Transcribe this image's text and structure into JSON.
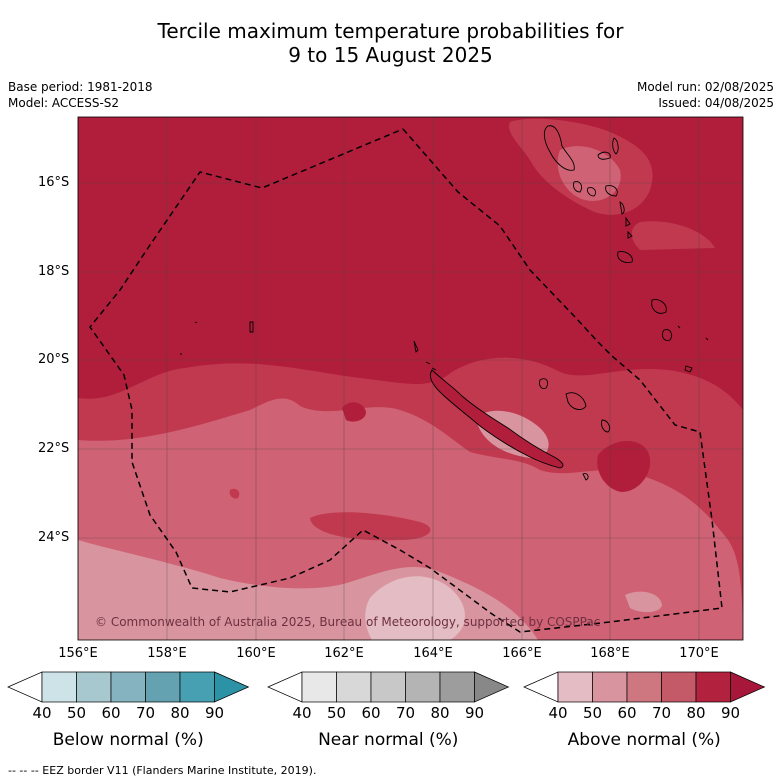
{
  "title": {
    "line1": "Tercile maximum temperature probabilities for",
    "line2": "9 to 15 August 2025"
  },
  "info": {
    "base_period": "Base period: 1981-2018",
    "model": "Model: ACCESS-S2",
    "model_run": "Model run: 02/08/2025",
    "issued": "Issued: 04/08/2025"
  },
  "map": {
    "lat_labels": [
      "16°S",
      "18°S",
      "20°S",
      "22°S",
      "24°S"
    ],
    "lon_labels": [
      "156°E",
      "158°E",
      "160°E",
      "162°E",
      "164°E",
      "166°E",
      "168°E",
      "170°E"
    ],
    "copyright": "© Commonwealth of Australia 2025, Bureau of Meteorology, supported by COSPPac",
    "dominant_category": "Above normal",
    "dominant_probability_range": "80-90%"
  },
  "colorbars": [
    {
      "title": "Below normal (%)",
      "ticks": [
        "40",
        "50",
        "60",
        "70",
        "80",
        "90"
      ],
      "colors": [
        "#ffffff",
        "#cde3e8",
        "#a8c8cf",
        "#85b3bf",
        "#64a2b2",
        "#46a0b1",
        "#2c93a6"
      ]
    },
    {
      "title": "Near normal (%)",
      "ticks": [
        "40",
        "50",
        "60",
        "70",
        "80",
        "90"
      ],
      "colors": [
        "#ffffff",
        "#e8e8e8",
        "#d8d8d8",
        "#c8c8c8",
        "#b4b4b4",
        "#9d9d9d",
        "#888888"
      ]
    },
    {
      "title": "Above normal (%)",
      "ticks": [
        "40",
        "50",
        "60",
        "70",
        "80",
        "90"
      ],
      "colors": [
        "#ffffff",
        "#e4bcc4",
        "#d9959f",
        "#cf7780",
        "#c45a68",
        "#b2223e",
        "#a6173a"
      ]
    }
  ],
  "footer": "-- -- -- EEZ border V11 (Flanders Marine Institute, 2019)."
}
